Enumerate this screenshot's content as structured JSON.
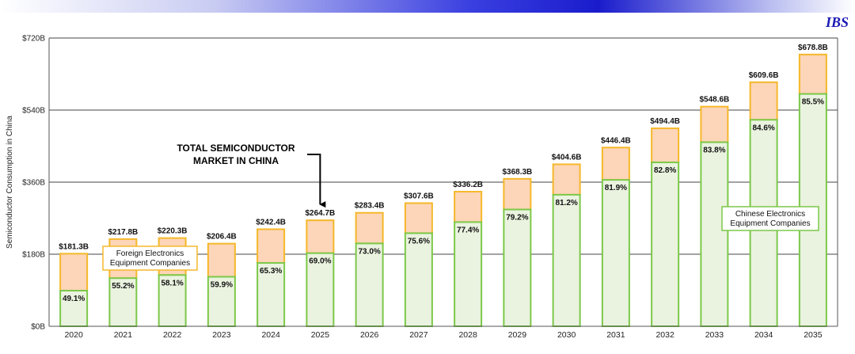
{
  "logo": "IBS",
  "chart_data": {
    "type": "bar",
    "ylabel": "Semiconductor Consumption in China",
    "ylim": [
      0,
      720
    ],
    "y_ticks": [
      "$0B",
      "$180B",
      "$360B",
      "$540B",
      "$720B"
    ],
    "grid": true,
    "categories": [
      "2020",
      "2021",
      "2022",
      "2023",
      "2024",
      "2025",
      "2026",
      "2027",
      "2028",
      "2029",
      "2030",
      "2031",
      "2032",
      "2033",
      "2034",
      "2035"
    ],
    "totals": [
      181.3,
      217.8,
      220.3,
      206.4,
      242.4,
      264.7,
      283.4,
      307.6,
      336.2,
      368.3,
      404.6,
      446.4,
      494.4,
      548.6,
      609.6,
      678.8
    ],
    "total_labels": [
      "$181.3B",
      "$217.8B",
      "$220.3B",
      "$206.4B",
      "$242.4B",
      "$264.7B",
      "$283.4B",
      "$307.6B",
      "$336.2B",
      "$368.3B",
      "$404.6B",
      "$446.4B",
      "$494.4B",
      "$548.6B",
      "$609.6B",
      "$678.8B"
    ],
    "chinese_share_pct": [
      49.1,
      55.2,
      58.1,
      59.9,
      65.3,
      69.0,
      73.0,
      75.6,
      77.4,
      79.2,
      81.2,
      81.9,
      82.8,
      83.8,
      84.6,
      85.5
    ],
    "share_labels": [
      "49.1%",
      "55.2%",
      "58.1%",
      "59.9%",
      "65.3%",
      "69.0%",
      "73.0%",
      "75.6%",
      "77.4%",
      "79.2%",
      "81.2%",
      "81.9%",
      "82.8%",
      "83.8%",
      "84.6%",
      "85.5%"
    ],
    "series": [
      {
        "name": "Chinese Electronics Equipment  Companies",
        "color_fill": "#eaf3df",
        "color_edge": "#7dc84a"
      },
      {
        "name": "Foreign Electronics Equipment Companies",
        "color_fill": "#fdd5b8",
        "color_edge": "#f5b82a"
      }
    ],
    "legend_foreign": [
      "Foreign Electronics",
      "Equipment Companies"
    ],
    "legend_chinese": [
      "Chinese Electronics",
      "Equipment  Companies"
    ],
    "annotation": [
      "TOTAL SEMICONDUCTOR",
      "MARKET IN CHINA"
    ],
    "annotation_target": "2025"
  }
}
